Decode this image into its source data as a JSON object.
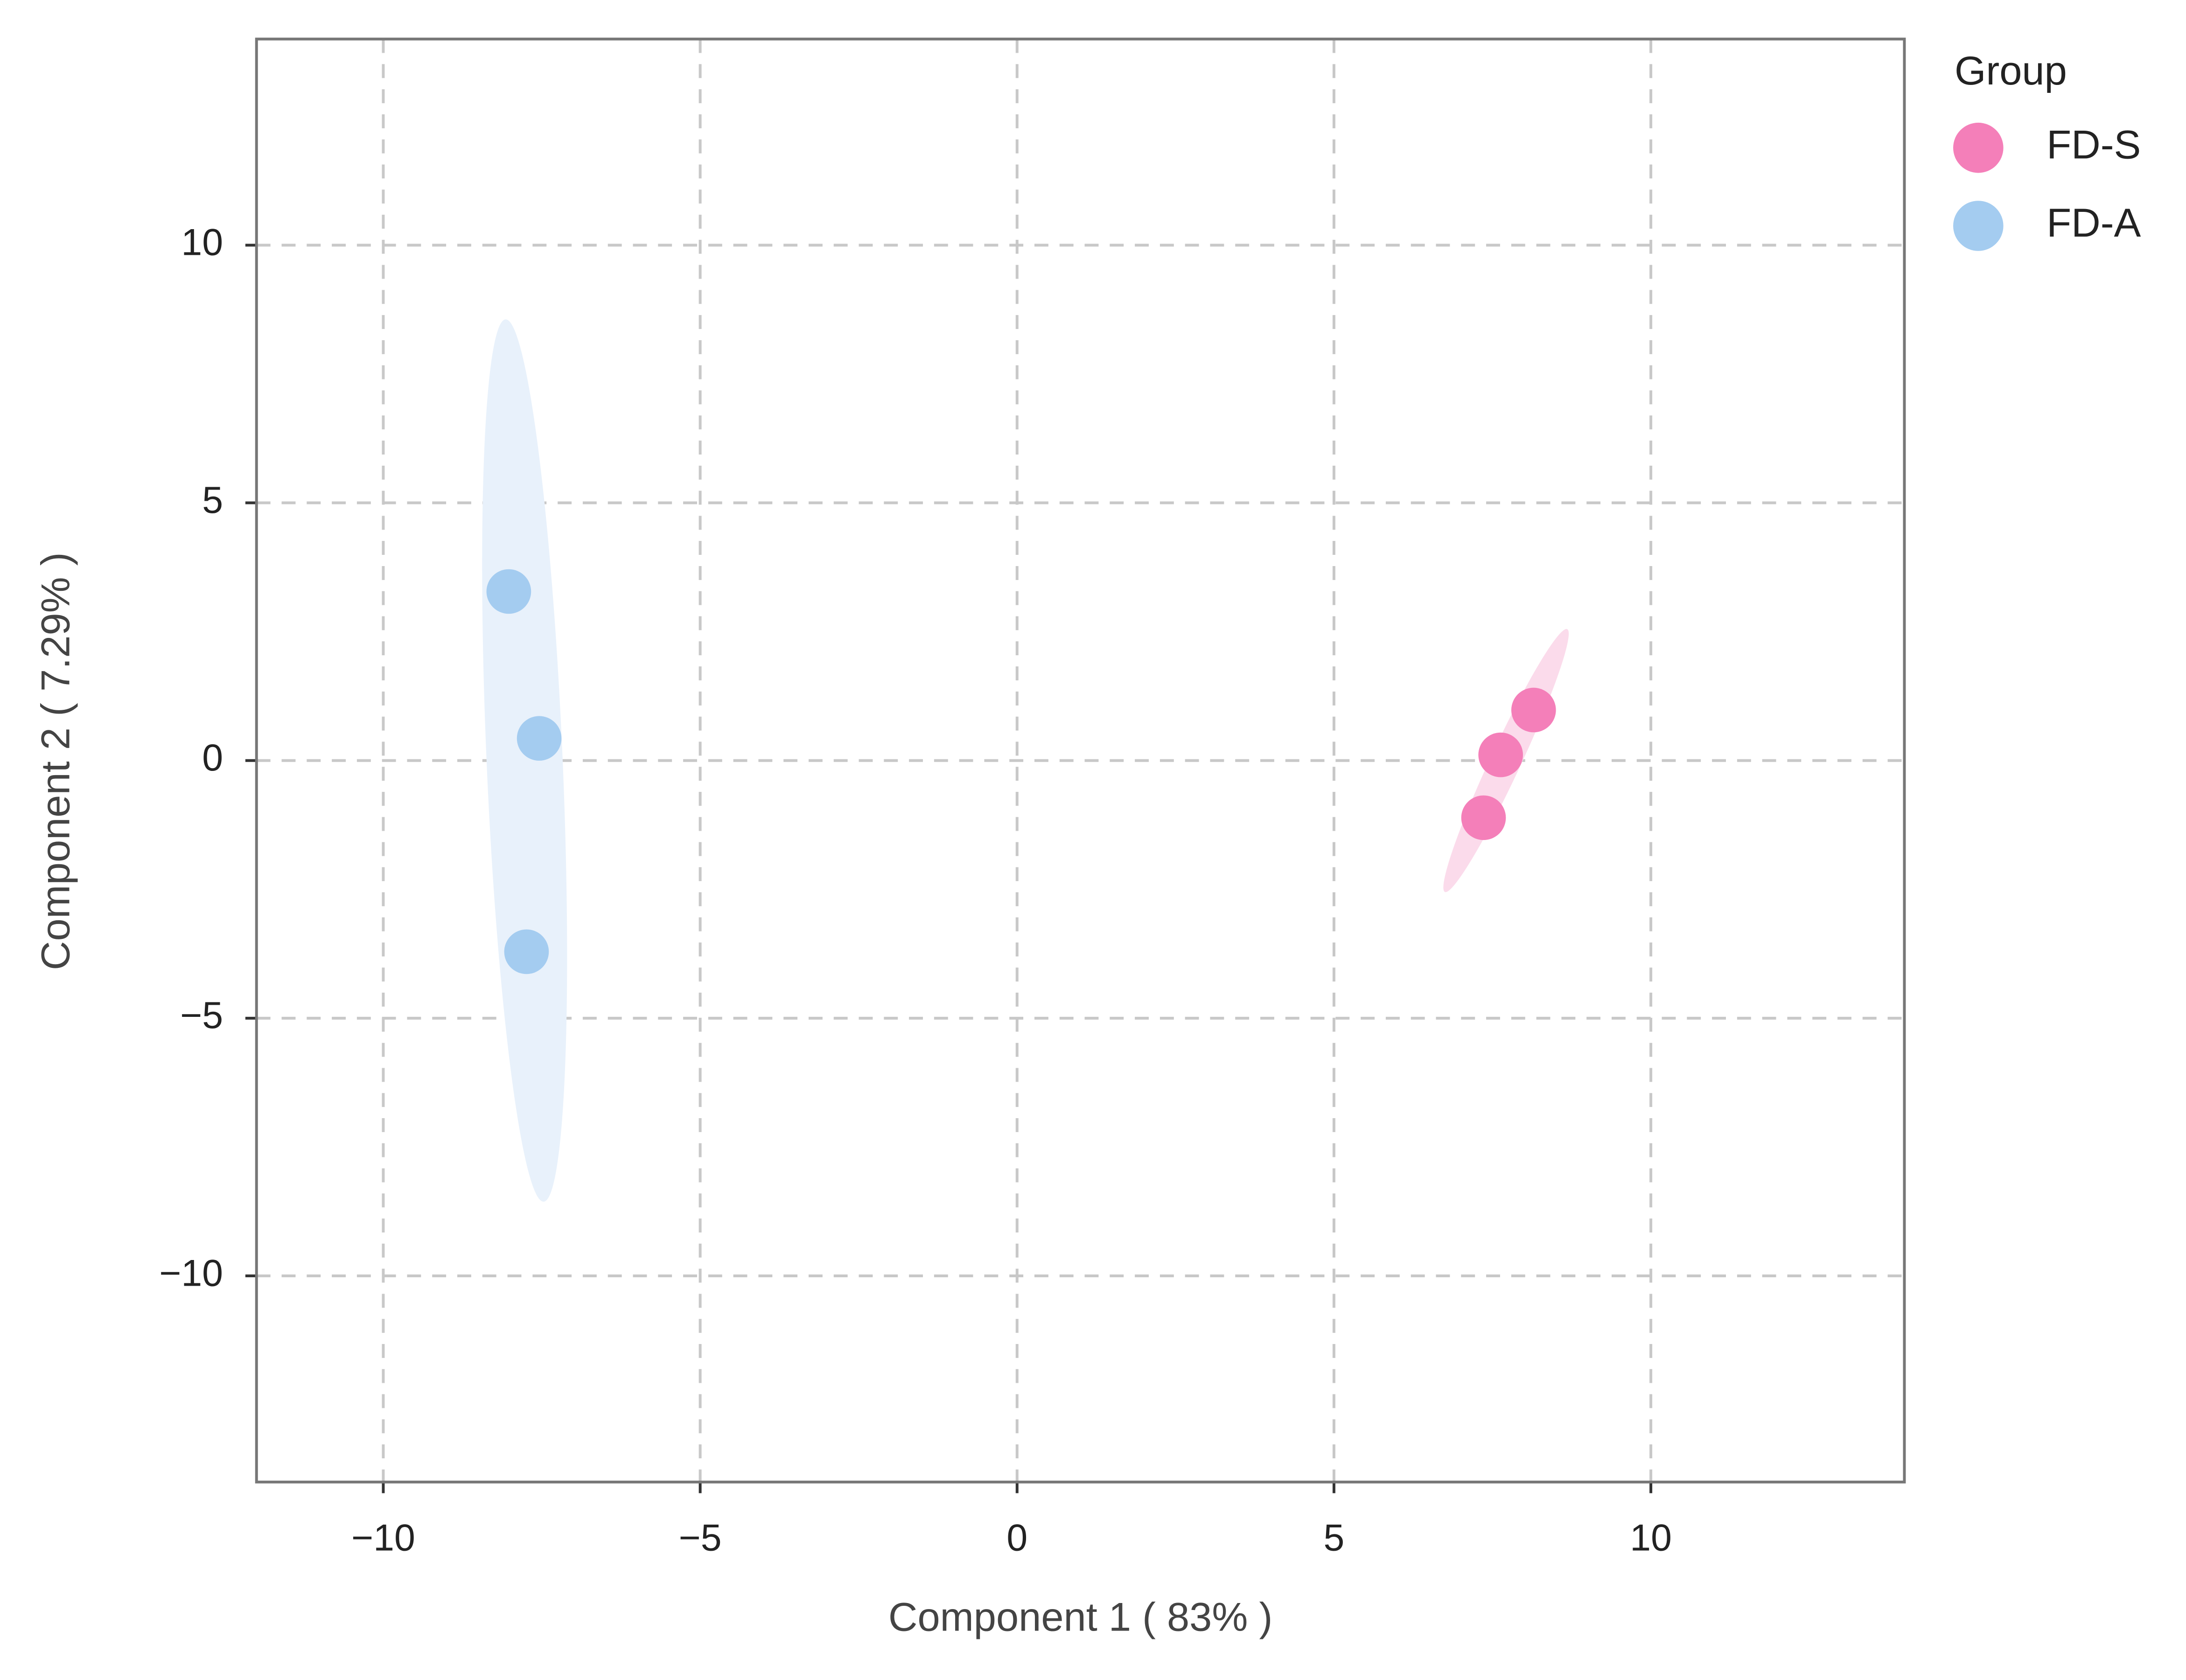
{
  "chart_data": {
    "type": "scatter",
    "x_label": "Component 1 ( 83% )",
    "y_label": "Component 2 ( 7.29% )",
    "legend_title": "Group",
    "legend": "outside-right",
    "grid": true,
    "xlim": [
      -12,
      14
    ],
    "ylim": [
      -14,
      14
    ],
    "xticks": [
      {
        "value": -10,
        "label": "−10"
      },
      {
        "value": -5,
        "label": "−5"
      },
      0,
      5,
      10
    ],
    "yticks": [
      {
        "value": -10,
        "label": "−10"
      },
      {
        "value": -5,
        "label": "−5"
      },
      0,
      5,
      10
    ],
    "series": [
      {
        "name": "FD-S",
        "color": "#f47fb9",
        "ellipse_color": "#fbdbeb",
        "x": [
          8.15,
          7.63,
          7.36
        ],
        "y": [
          0.98,
          0.11,
          -1.11
        ],
        "ellipse": {
          "x": [
            8.68,
            6.75
          ],
          "y": [
            2.55,
            -2.55
          ],
          "minor": 0.24
        }
      },
      {
        "name": "FD-A",
        "color": "#a4ccf0",
        "ellipse_color": "#e8f1fb",
        "x": [
          -8.02,
          -7.54,
          -7.74
        ],
        "y": [
          3.28,
          0.43,
          -3.71
        ],
        "ellipse": {
          "x": [
            -8.07,
            -7.47
          ],
          "y": [
            8.56,
            -8.56
          ],
          "minor": 0.6
        }
      }
    ]
  }
}
